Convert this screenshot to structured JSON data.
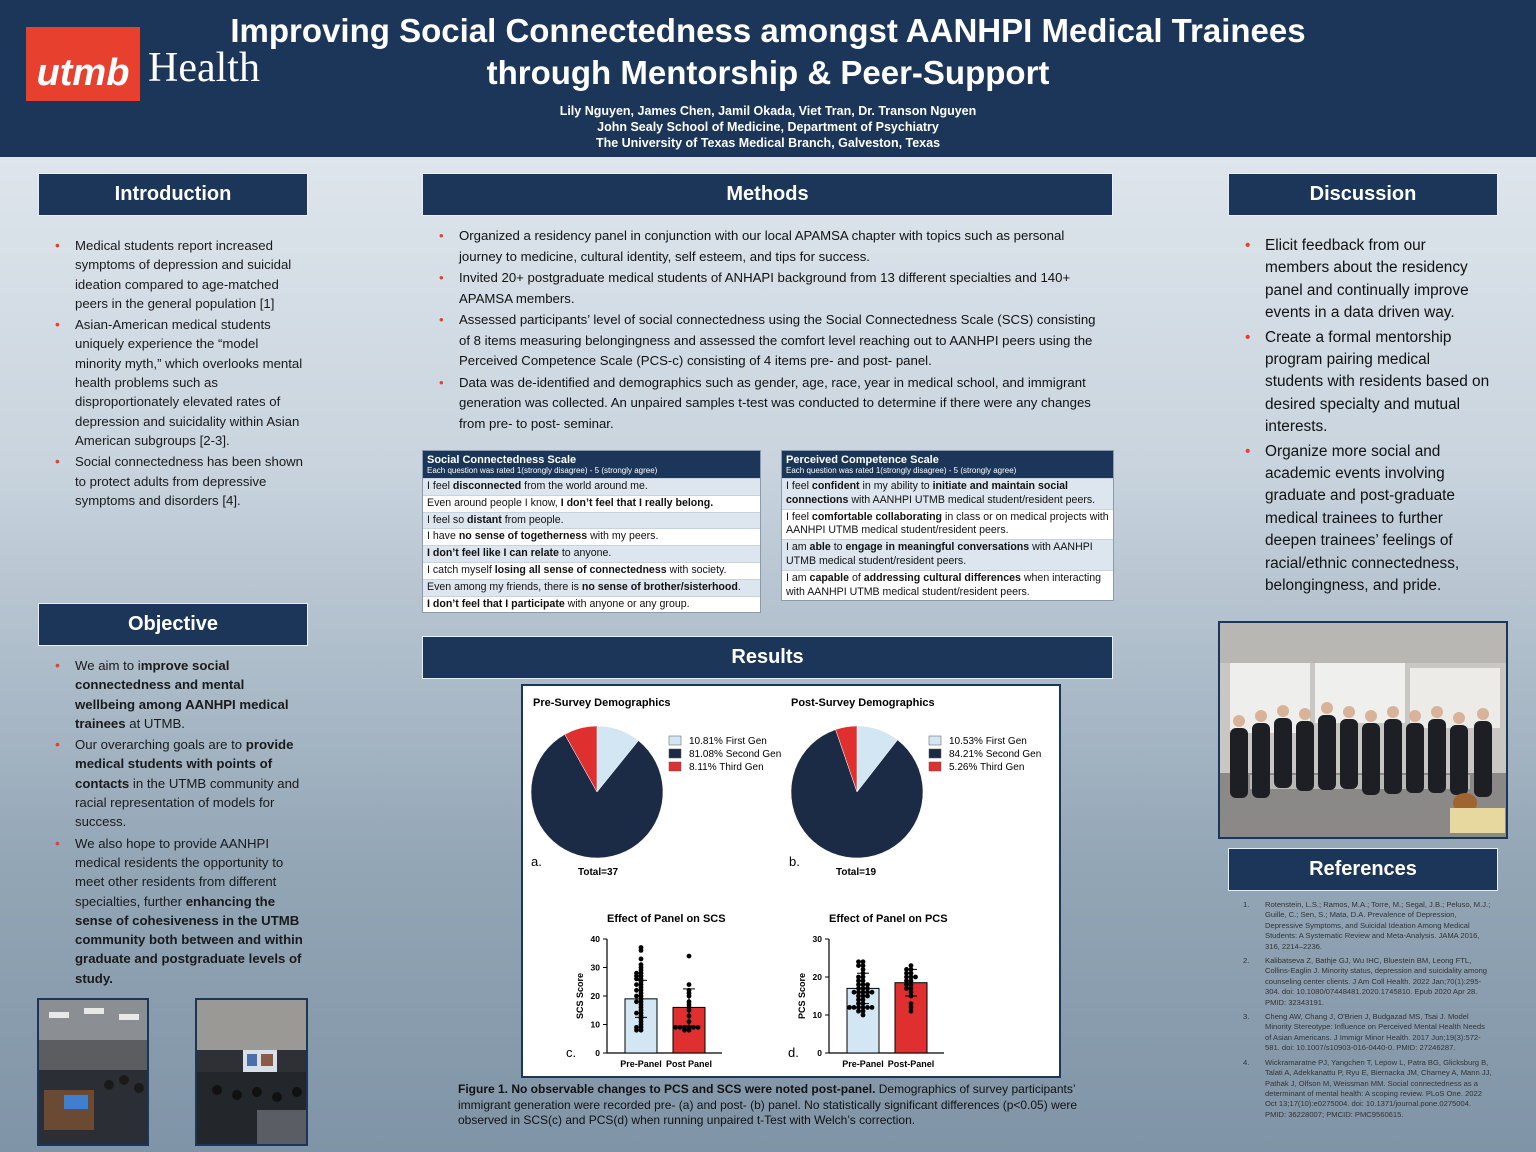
{
  "header": {
    "logo_brand": "utmb",
    "logo_health": "Health",
    "title_line1": "Improving Social Connectedness amongst AANHPI Medical Trainees",
    "title_line2": "through Mentorship & Peer-Support",
    "authors": "Lily Nguyen, James Chen, Jamil Okada, Viet Tran, Dr. Transon Nguyen",
    "school": "John Sealy School of Medicine, Department of Psychiatry",
    "university": "The University of Texas Medical Branch, Galveston, Texas"
  },
  "introduction": {
    "heading": "Introduction",
    "bullets": [
      "Medical students report increased symptoms of depression and suicidal ideation compared to age-matched peers in the general population [1]",
      "Asian-American medical students uniquely experience the “model minority myth,” which overlooks mental health problems such as disproportionately elevated rates of depression and suicidality within Asian American subgroups [2-3].",
      "Social connectedness has been shown to protect adults from depressive symptoms and disorders [4]."
    ]
  },
  "objective": {
    "heading": "Objective",
    "b1_pre": "We aim to i",
    "b1_bold": "mprove social connectedness and mental wellbeing among AANHPI medical trainees",
    "b1_post": " at UTMB.",
    "b2_pre": "Our overarching goals are to ",
    "b2_bold": "provide medical students with points of contacts",
    "b2_post": " in the UTMB community and racial representation of models for success.",
    "b3_pre": "We also hope to provide AANHPI medical residents the opportunity to meet other residents from different specialties, further ",
    "b3_bold": "enhancing the sense of cohesiveness in the UTMB community both between and within graduate and postgraduate levels of study."
  },
  "methods": {
    "heading": "Methods",
    "bullets": [
      "Organized a residency panel in conjunction with our local APAMSA chapter with topics such as personal journey to medicine, cultural identity, self esteem, and tips for success.",
      "Invited 20+ postgraduate medical students of ANHAPI background from 13 different specialties and 140+ APAMSA members.",
      "Assessed participants’ level of social connectedness using the Social Connectedness Scale (SCS) consisting of 8 items measuring belongingness and assessed the comfort level reaching out to AANHPI peers using the Perceived Competence Scale (PCS-c) consisting of 4 items pre- and post- panel.",
      "Data was de-identified and demographics such as gender, age, race, year in medical school, and immigrant generation was collected. An unpaired samples t-test was conducted to determine if there were any changes from pre- to post- seminar."
    ]
  },
  "scs": {
    "title": "Social Connectedness Scale",
    "subtitle": "Each question was rated 1(strongly disagree) - 5 (strongly agree)",
    "rows": [
      [
        "I feel ",
        "disconnected",
        " from the world around me."
      ],
      [
        "Even around people I know, ",
        "I don’t feel that I really belong.",
        ""
      ],
      [
        "I feel so ",
        "distant",
        " from people."
      ],
      [
        "I have ",
        "no sense of togetherness",
        " with my peers."
      ],
      [
        "",
        "I don’t feel like I can relate",
        " to anyone."
      ],
      [
        "I catch myself ",
        "losing all sense of connectedness",
        " with society."
      ],
      [
        "Even among my friends, there is ",
        "no sense of brother/sisterhood",
        "."
      ],
      [
        "",
        "I don’t feel that I participate",
        " with anyone or any group."
      ]
    ]
  },
  "pcs": {
    "title": "Perceived Competence Scale",
    "subtitle": "Each question was rated 1(strongly disagree) - 5 (strongly agree)",
    "rows": [
      [
        "I feel ",
        "confident",
        " in my ability to ",
        "initiate and maintain social connections",
        " with AANHPI UTMB medical student/resident peers."
      ],
      [
        "I feel ",
        "comfortable collaborating",
        " in class or on medical projects with AANHPI UTMB medical student/resident peers.",
        "",
        ""
      ],
      [
        "I am ",
        "able",
        " to ",
        "engage in meaningful conversations",
        " with AANHPI UTMB medical student/resident peers."
      ],
      [
        "I am ",
        "capable",
        " of ",
        "addressing cultural differences",
        " when interacting with AANHPI UTMB medical student/resident peers."
      ]
    ]
  },
  "results": {
    "heading": "Results",
    "caption_bold": "Figure 1. No observable changes to PCS and SCS were noted post-panel.",
    "caption_rest": " Demographics of survey participants’ immigrant generation were recorded pre- (a) and post- (b) panel. No statistically significant differences (p<0.05) were observed in SCS(c) and PCS(d) when running unpaired t-Test with Welch’s correction."
  },
  "colors": {
    "navy": "#1b3658",
    "red": "#e8402f",
    "light_blue": "#d3e6f3"
  },
  "chart_data": [
    {
      "type": "pie",
      "title": "Pre-Survey Demographics",
      "panel": "a.",
      "total_label": "Total=37",
      "slices": [
        {
          "label": "10.81%  First Gen",
          "value": 10.81,
          "color": "#d3e6f3"
        },
        {
          "label": "81.08%  Second Gen",
          "value": 81.08,
          "color": "#1b2a45"
        },
        {
          "label": "8.11%  Third Gen",
          "value": 8.11,
          "color": "#e02f2f"
        }
      ]
    },
    {
      "type": "pie",
      "title": "Post-Survey Demographics",
      "panel": "b.",
      "total_label": "Total=19",
      "slices": [
        {
          "label": "10.53%  First Gen",
          "value": 10.53,
          "color": "#d3e6f3"
        },
        {
          "label": "84.21%  Second Gen",
          "value": 84.21,
          "color": "#1b2a45"
        },
        {
          "label": "5.26%  Third Gen",
          "value": 5.26,
          "color": "#e02f2f"
        }
      ]
    },
    {
      "type": "bar",
      "title": "Effect of Panel on SCS",
      "panel": "c.",
      "ylabel": "SCS Score",
      "ylim": [
        0,
        40
      ],
      "yticks": [
        0,
        10,
        20,
        30,
        40
      ],
      "categories": [
        "Pre-Panel",
        "Post Panel"
      ],
      "values": [
        19,
        16
      ],
      "errors": [
        6.5,
        6.5
      ],
      "colors": [
        "#d3e6f3",
        "#e02f2f"
      ],
      "points": [
        [
          37,
          36,
          33,
          31,
          30,
          29,
          28,
          28,
          27,
          27,
          26,
          26,
          25,
          24,
          24,
          23,
          22,
          22,
          21,
          20,
          20,
          19,
          18,
          18,
          17,
          16,
          15,
          14,
          14,
          13,
          12,
          11,
          10,
          9,
          9,
          8,
          8
        ],
        [
          34,
          24,
          22,
          21,
          20,
          18,
          17,
          16,
          15,
          13,
          11,
          9,
          9,
          9,
          9,
          9,
          9,
          8,
          8
        ]
      ]
    },
    {
      "type": "bar",
      "title": "Effect of Panel on PCS",
      "panel": "d.",
      "ylabel": "PCS Score",
      "ylim": [
        0,
        30
      ],
      "yticks": [
        0,
        10,
        20,
        30
      ],
      "categories": [
        "Pre-Panel",
        "Post-Panel"
      ],
      "values": [
        17,
        18.5
      ],
      "errors": [
        4,
        3.5
      ],
      "colors": [
        "#d3e6f3",
        "#e02f2f"
      ],
      "points": [
        [
          24,
          24,
          23,
          23,
          22,
          21,
          20,
          20,
          19,
          19,
          18,
          18,
          18,
          17,
          17,
          17,
          16,
          16,
          16,
          16,
          16,
          15,
          15,
          15,
          14,
          14,
          13,
          13,
          12,
          12,
          12,
          12,
          12,
          12,
          11,
          11,
          10
        ],
        [
          23,
          22,
          22,
          21,
          21,
          20,
          20,
          20,
          19,
          19,
          18,
          18,
          17,
          17,
          16,
          15,
          13,
          12,
          11
        ]
      ]
    }
  ],
  "discussion": {
    "heading": "Discussion",
    "bullets": [
      "Elicit feedback from our members about the residency panel and continually improve events in a data driven way.",
      "Create a formal mentorship program pairing medical students with residents based on desired specialty and mutual interests.",
      "Organize more social and academic events involving graduate and post-graduate medical trainees to further deepen trainees’ feelings of racial/ethnic connectedness, belongingness, and pride."
    ]
  },
  "references": {
    "heading": "References",
    "items": [
      {
        "n": "1.",
        "text": "Rotenstein, L.S.; Ramos, M.A.; Torre, M.; Segal, J.B.; Peluso, M.J.; Guille, C.; Sen, S.; Mata, D.A. Prevalence of Depression, Depressive Symptoms, and Suicidal Ideation Among Medical Students: A Systematic Review and Meta-Analysis. JAMA 2016, 316, 2214–2236."
      },
      {
        "n": "2.",
        "text": "Kalibatseva Z, Bathje GJ, Wu IHC, Bluestein BM, Leong FTL, Collins-Eaglin J. Minority status, depression and suicidality among counseling center clients. J Am Coll Health. 2022 Jan;70(1):295-304. doi: 10.1080/07448481.2020.1745810. Epub 2020 Apr 28. PMID: 32343191."
      },
      {
        "n": "3.",
        "text": "Cheng AW, Chang J, O'Brien J, Budgazad MS, Tsai J. Model Minority Stereotype: Influence on Perceived Mental Health Needs of Asian Americans. J Immigr Minor Health. 2017 Jun;19(3):572-581. doi: 10.1007/s10903-016-0440-0. PMID: 27246287."
      },
      {
        "n": "4.",
        "text": "Wickramaratne PJ, Yangchen T, Lepow L, Patra BG, Glicksburg B, Talati A, Adekkanattu P, Ryu E, Biernacka JM, Charney A, Mann JJ, Pathak J, Olfson M, Weissman MM. Social connectedness as a determinant of mental health: A scoping review. PLoS One. 2022 Oct 13;17(10):e0275004. doi: 10.1371/journal.pone.0275004. PMID: 36228007; PMCID: PMC9560615."
      }
    ]
  }
}
